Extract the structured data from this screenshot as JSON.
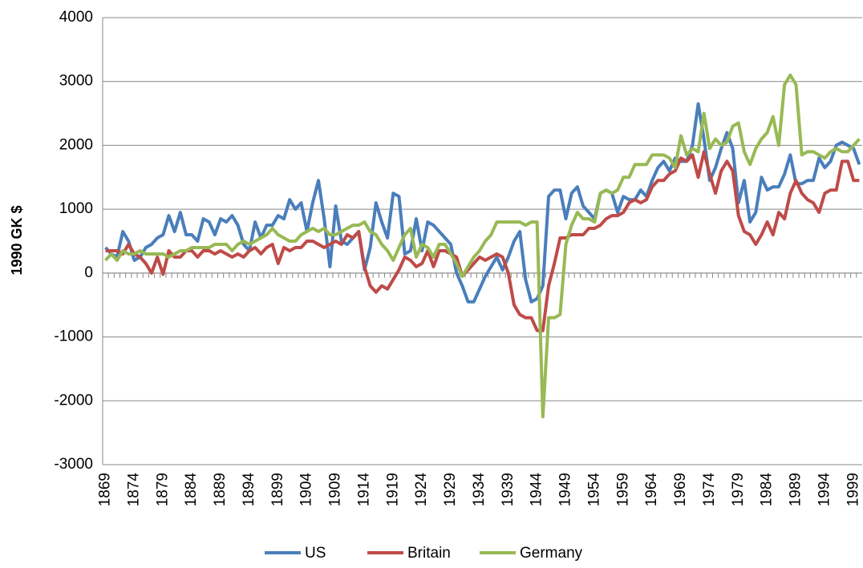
{
  "chart_data": {
    "type": "line",
    "y_label": "1990 GK $",
    "categories": [
      "1869",
      null,
      null,
      null,
      null,
      "1874",
      null,
      null,
      null,
      null,
      "1879",
      null,
      null,
      null,
      null,
      "1884",
      null,
      null,
      null,
      null,
      "1889",
      null,
      null,
      null,
      null,
      "1894",
      null,
      null,
      null,
      null,
      "1899",
      null,
      null,
      null,
      null,
      "1904",
      null,
      null,
      null,
      null,
      "1909",
      null,
      null,
      null,
      null,
      "1914",
      null,
      null,
      null,
      null,
      "1919",
      null,
      null,
      null,
      null,
      "1924",
      null,
      null,
      null,
      null,
      "1929",
      null,
      null,
      null,
      null,
      "1934",
      null,
      null,
      null,
      null,
      "1939",
      null,
      null,
      null,
      null,
      "1944",
      null,
      null,
      null,
      null,
      "1949",
      null,
      null,
      null,
      null,
      "1954",
      null,
      null,
      null,
      null,
      "1959",
      null,
      null,
      null,
      null,
      "1964",
      null,
      null,
      null,
      null,
      "1969",
      null,
      null,
      null,
      null,
      "1974",
      null,
      null,
      null,
      null,
      "1979",
      null,
      null,
      null,
      null,
      "1984",
      null,
      null,
      null,
      null,
      "1989",
      null,
      null,
      null,
      null,
      "1994",
      null,
      null,
      null,
      null,
      "1999",
      null
    ],
    "series": [
      {
        "name": "US",
        "color": "#4a7ebb",
        "values": [
          400,
          300,
          250,
          650,
          500,
          200,
          250,
          400,
          450,
          550,
          600,
          900,
          650,
          950,
          600,
          600,
          500,
          850,
          800,
          600,
          850,
          800,
          900,
          750,
          450,
          350,
          800,
          550,
          750,
          750,
          900,
          850,
          1150,
          1000,
          1100,
          650,
          1100,
          1450,
          850,
          100,
          1050,
          500,
          450,
          550,
          650,
          50,
          400,
          1100,
          800,
          550,
          1250,
          1200,
          300,
          350,
          850,
          350,
          800,
          750,
          650,
          550,
          450,
          0,
          -200,
          -450,
          -450,
          -250,
          -50,
          100,
          250,
          50,
          250,
          500,
          650,
          -100,
          -450,
          -400,
          -200,
          1200,
          1300,
          1300,
          850,
          1250,
          1350,
          1050,
          950,
          850,
          1250,
          1300,
          1250,
          950,
          1200,
          1150,
          1150,
          1300,
          1200,
          1450,
          1650,
          1750,
          1600,
          1800,
          1750,
          1750,
          2000,
          2650,
          2100,
          1450,
          1650,
          1950,
          2200,
          1950,
          1100,
          1450,
          800,
          950,
          1500,
          1300,
          1350,
          1350,
          1550,
          1850,
          1400,
          1400,
          1450,
          1450,
          1800,
          1650,
          1750,
          2000,
          2050,
          2000,
          1950,
          1700
        ]
      },
      {
        "name": "Britain",
        "color": "#be4b48",
        "values": [
          350,
          350,
          350,
          300,
          450,
          300,
          250,
          150,
          0,
          250,
          -20,
          350,
          250,
          250,
          350,
          350,
          250,
          350,
          350,
          300,
          350,
          300,
          250,
          300,
          250,
          350,
          400,
          300,
          400,
          450,
          150,
          400,
          350,
          400,
          400,
          500,
          500,
          450,
          400,
          450,
          500,
          450,
          600,
          550,
          650,
          100,
          -200,
          -300,
          -200,
          -250,
          -100,
          50,
          250,
          200,
          100,
          150,
          350,
          100,
          350,
          350,
          300,
          250,
          -50,
          50,
          150,
          250,
          200,
          250,
          300,
          250,
          0,
          -500,
          -650,
          -700,
          -700,
          -900,
          -900,
          -200,
          150,
          550,
          550,
          600,
          600,
          600,
          700,
          700,
          750,
          850,
          900,
          900,
          950,
          1100,
          1150,
          1100,
          1150,
          1350,
          1450,
          1450,
          1550,
          1600,
          1800,
          1750,
          1850,
          1500,
          1900,
          1550,
          1250,
          1600,
          1750,
          1600,
          900,
          650,
          600,
          450,
          600,
          800,
          600,
          950,
          850,
          1250,
          1450,
          1250,
          1150,
          1100,
          950,
          1250,
          1300,
          1300,
          1750,
          1750,
          1450,
          1450
        ]
      },
      {
        "name": "Germany",
        "color": "#98b954",
        "values": [
          200,
          300,
          200,
          350,
          300,
          300,
          350,
          300,
          300,
          300,
          300,
          250,
          300,
          350,
          350,
          400,
          400,
          400,
          400,
          450,
          450,
          450,
          350,
          450,
          500,
          450,
          500,
          550,
          600,
          700,
          600,
          550,
          500,
          500,
          600,
          650,
          700,
          650,
          700,
          600,
          600,
          650,
          700,
          750,
          750,
          800,
          650,
          600,
          450,
          350,
          200,
          400,
          600,
          700,
          250,
          450,
          400,
          250,
          450,
          450,
          300,
          150,
          -50,
          100,
          250,
          350,
          500,
          600,
          800,
          800,
          800,
          800,
          800,
          750,
          800,
          800,
          -2250,
          -700,
          -700,
          -650,
          450,
          750,
          950,
          850,
          850,
          800,
          1250,
          1300,
          1250,
          1300,
          1500,
          1500,
          1700,
          1700,
          1700,
          1850,
          1850,
          1850,
          1800,
          1650,
          2150,
          1850,
          1950,
          1900,
          2500,
          1950,
          2100,
          2000,
          2050,
          2300,
          2350,
          1900,
          1700,
          1950,
          2100,
          2200,
          2450,
          2000,
          2950,
          3100,
          2950,
          1850,
          1900,
          1900,
          1850,
          1800,
          1900,
          1950,
          1900,
          1900,
          2000,
          2100
        ]
      }
    ],
    "ylim": [
      -3000,
      4000
    ],
    "yticks": [
      -3000,
      -2000,
      -1000,
      0,
      1000,
      2000,
      3000,
      4000
    ],
    "grid": true,
    "legend": "bottom"
  }
}
